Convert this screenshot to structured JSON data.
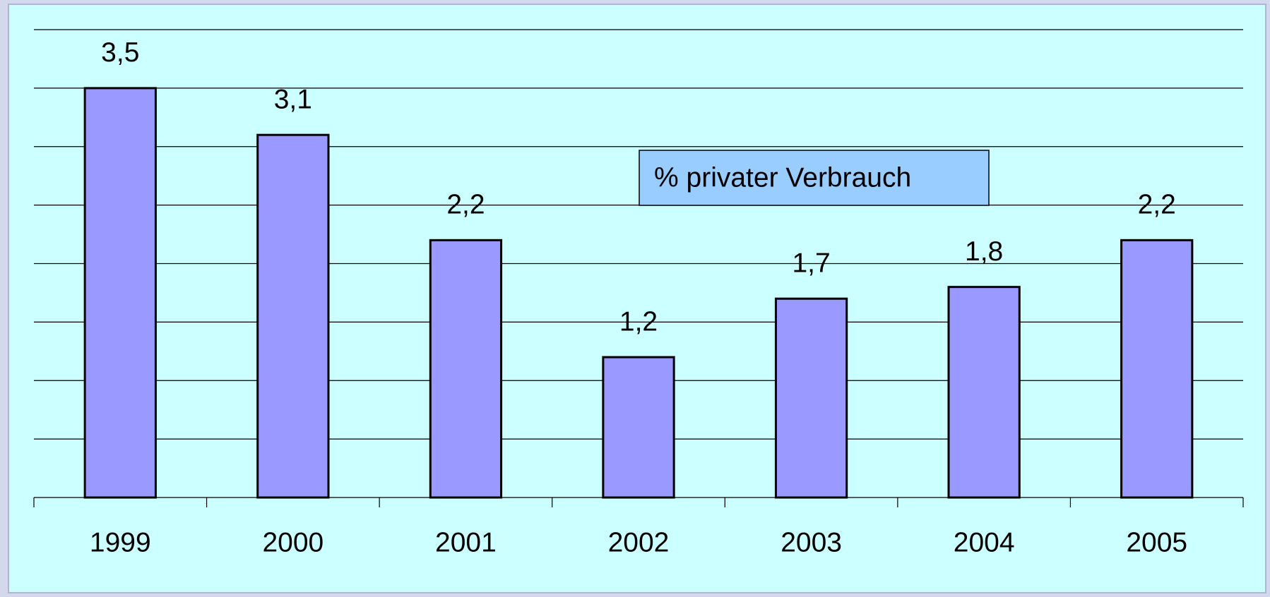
{
  "chart_data": {
    "type": "bar",
    "categories": [
      "1999",
      "2000",
      "2001",
      "2002",
      "2003",
      "2004",
      "2005"
    ],
    "series": [
      {
        "name": "% privater Verbrauch",
        "color": "#9999ff",
        "values": [
          3.5,
          3.1,
          2.2,
          1.2,
          1.7,
          1.8,
          2.2
        ],
        "value_labels": [
          "3,5",
          "3,1",
          "2,2",
          "1,2",
          "1,7",
          "1,8",
          "2,2"
        ]
      }
    ],
    "ylim": [
      0,
      4
    ],
    "yticks": [
      0,
      0.5,
      1,
      1.5,
      2,
      2.5,
      3,
      3.5,
      4
    ],
    "grid": true,
    "legend": "top-right"
  }
}
